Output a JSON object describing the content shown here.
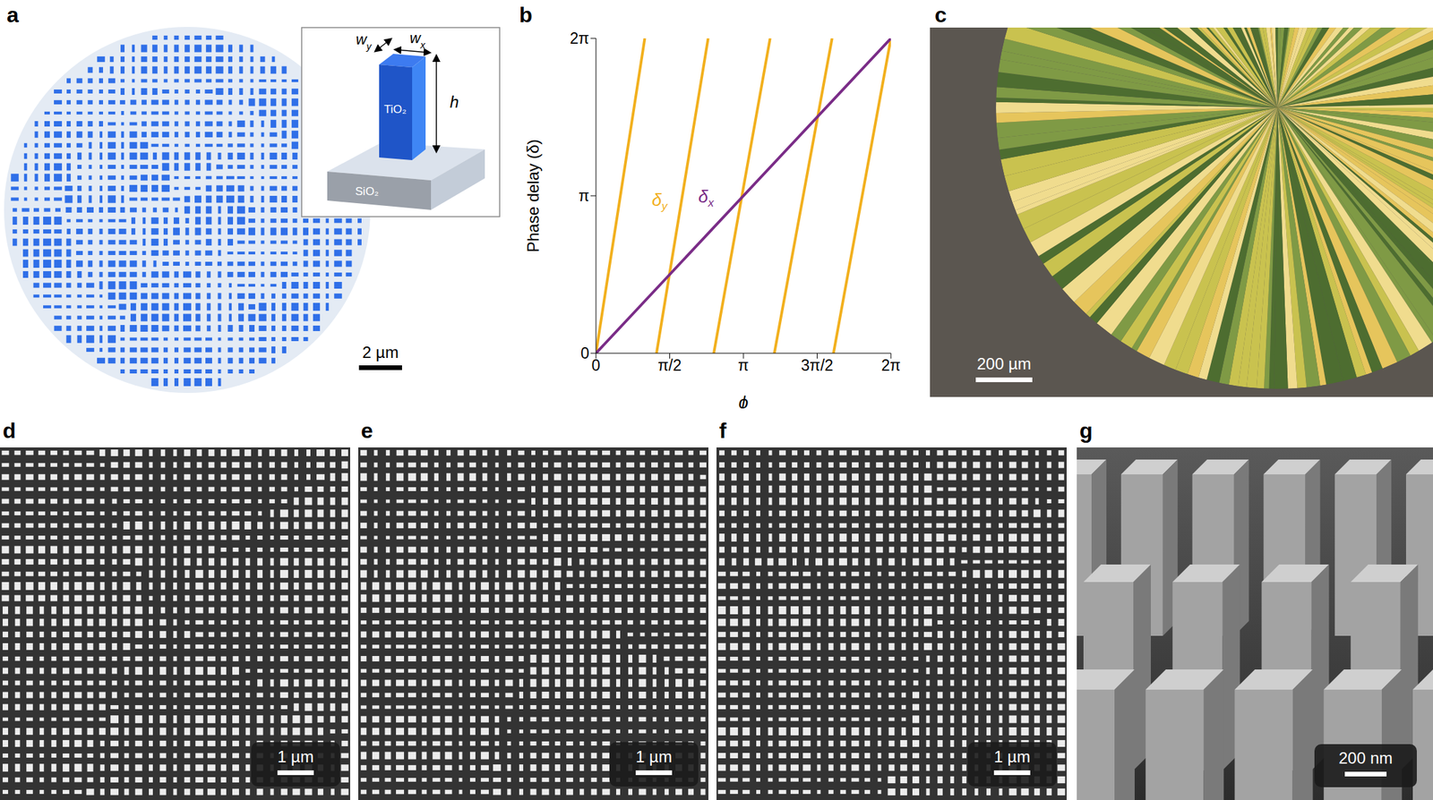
{
  "panels": {
    "labels": [
      "a",
      "b",
      "c",
      "d",
      "e",
      "f",
      "g"
    ],
    "a": {
      "scale_bar": "2 µm",
      "inset": {
        "wy": "wy",
        "wx": "wx",
        "h": "h",
        "pillar": "TiO₂",
        "substrate": "SiO₂"
      }
    },
    "c": {
      "scale_bar": "200 µm"
    },
    "d": {
      "scale_bar": "1 µm"
    },
    "e": {
      "scale_bar": "1 µm"
    },
    "f": {
      "scale_bar": "1 µm"
    },
    "g": {
      "scale_bar": "200 nm"
    }
  },
  "chart_data": {
    "type": "line",
    "xlabel": "ϕ",
    "ylabel": "Phase delay (δ)",
    "xlim": [
      0,
      6.28319
    ],
    "ylim": [
      0,
      6.28319
    ],
    "xticks": [
      0,
      {
        "value": 1.5708,
        "label": "π/2"
      },
      {
        "value": 3.14159,
        "label": "π"
      },
      {
        "value": 4.71239,
        "label": "3π/2"
      },
      {
        "value": 6.28319,
        "label": "2π"
      }
    ],
    "yticks": [
      0,
      {
        "value": 3.14159,
        "label": "π"
      },
      {
        "value": 6.28319,
        "label": "2π"
      }
    ],
    "grid": false,
    "series": [
      {
        "name": "δy",
        "color": "#f2b01e",
        "x": [
          0,
          1.04,
          1.04,
          1.29,
          2.39,
          2.39,
          2.51,
          3.71,
          3.71,
          3.8,
          5.03,
          5.03,
          5.06,
          6.28319
        ],
        "values": [
          0,
          6.28319,
          null,
          0,
          6.28319,
          null,
          0,
          6.28319,
          null,
          0,
          6.28319,
          null,
          0,
          6.28319
        ]
      },
      {
        "name": "δx",
        "color": "#7a2c87",
        "x": [
          0,
          6.28319
        ],
        "values": [
          0,
          6.28319
        ]
      }
    ]
  }
}
